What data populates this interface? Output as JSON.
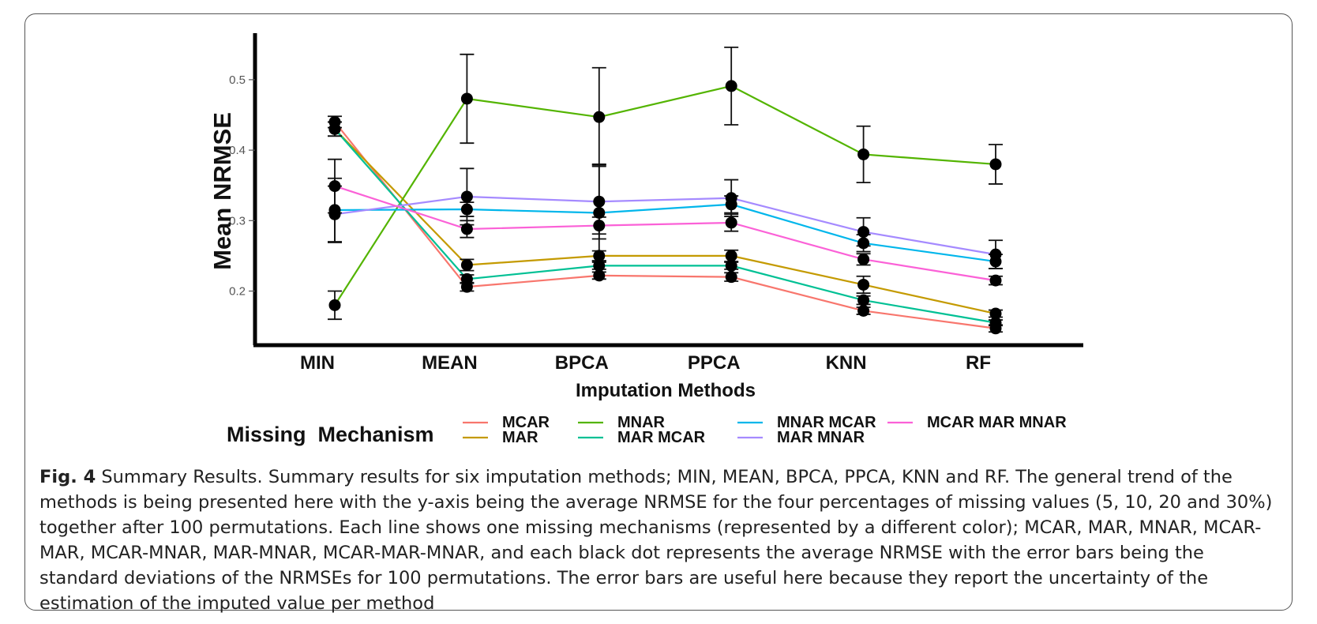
{
  "chart_data": {
    "type": "line",
    "xlabel": "Imputation Methods",
    "ylabel": "Mean NRMSE",
    "categories": [
      "MIN",
      "MEAN",
      "BPCA",
      "PPCA",
      "KNN",
      "RF"
    ],
    "ylim": [
      0.125,
      0.57
    ],
    "yticks": [
      0.2,
      0.3,
      0.4,
      0.5
    ],
    "ytick_labels": [
      "0.2",
      "0.3",
      "0.4",
      "0.5"
    ],
    "grid": false,
    "legend_title": "Missing  Mechanism",
    "legend_position": "bottom",
    "series": [
      {
        "name": "MCAR",
        "color": "#F8766D",
        "values": [
          0.44,
          0.206,
          0.222,
          0.22,
          0.172,
          0.147
        ],
        "errors": [
          0.008,
          0.006,
          0.005,
          0.006,
          0.005,
          0.005
        ]
      },
      {
        "name": "MAR",
        "color": "#C49A00",
        "values": [
          0.43,
          0.237,
          0.25,
          0.25,
          0.209,
          0.168
        ],
        "errors": [
          0.01,
          0.008,
          0.007,
          0.008,
          0.012,
          0.005
        ]
      },
      {
        "name": "MNAR",
        "color": "#53B400",
        "values": [
          0.18,
          0.473,
          0.447,
          0.491,
          0.394,
          0.38
        ],
        "errors": [
          0.02,
          0.063,
          0.07,
          0.055,
          0.04,
          0.028
        ]
      },
      {
        "name": "MAR MCAR",
        "color": "#00C094",
        "values": [
          0.43,
          0.217,
          0.236,
          0.236,
          0.187,
          0.155
        ],
        "errors": [
          0.01,
          0.006,
          0.005,
          0.005,
          0.006,
          0.004
        ]
      },
      {
        "name": "MNAR MCAR",
        "color": "#00B6EB",
        "values": [
          0.315,
          0.316,
          0.311,
          0.323,
          0.268,
          0.242
        ],
        "errors": [
          0.045,
          0.01,
          0.068,
          0.012,
          0.012,
          0.01
        ]
      },
      {
        "name": "MAR MNAR",
        "color": "#A58AFF",
        "values": [
          0.309,
          0.334,
          0.327,
          0.332,
          0.284,
          0.252
        ],
        "errors": [
          0.04,
          0.04,
          0.053,
          0.026,
          0.02,
          0.02
        ]
      },
      {
        "name": "MCAR MAR MNAR",
        "color": "#FB61D7",
        "values": [
          0.349,
          0.288,
          0.293,
          0.297,
          0.245,
          0.215
        ],
        "errors": [
          0.038,
          0.012,
          0.012,
          0.012,
          0.008,
          0.006
        ]
      }
    ]
  },
  "caption": {
    "label": "Fig. 4",
    "text": " Summary Results. Summary results for six imputation methods; MIN, MEAN, BPCA, PPCA, KNN and RF. The general trend of the methods is being presented here with the y-axis being the average NRMSE for the four percentages of missing values (5, 10, 20 and 30%) together after 100 permutations. Each line shows one missing mechanisms (represented by a different color); MCAR, MAR, MNAR, MCAR-MAR, MCAR-MNAR, MAR-MNAR, MCAR-MAR-MNAR, and each black dot represents the average NRMSE with the error bars being the standard deviations of the NRMSEs for 100 permutations. The error bars are useful here because they report the uncertainty of the estimation of the imputed value per method"
  }
}
